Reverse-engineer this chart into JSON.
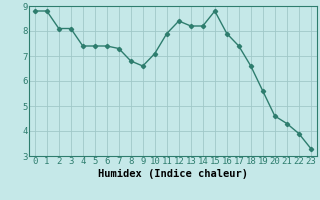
{
  "x": [
    0,
    1,
    2,
    3,
    4,
    5,
    6,
    7,
    8,
    9,
    10,
    11,
    12,
    13,
    14,
    15,
    16,
    17,
    18,
    19,
    20,
    21,
    22,
    23
  ],
  "y": [
    8.8,
    8.8,
    8.1,
    8.1,
    7.4,
    7.4,
    7.4,
    7.3,
    6.8,
    6.6,
    7.1,
    7.9,
    8.4,
    8.2,
    8.2,
    8.8,
    7.9,
    7.4,
    6.6,
    5.6,
    4.6,
    4.3,
    3.9,
    3.3
  ],
  "line_color": "#2e7d6e",
  "marker": "D",
  "marker_size": 2.2,
  "bg_color": "#c5e8e8",
  "grid_color": "#a0c8c8",
  "xlabel": "Humidex (Indice chaleur)",
  "ylim": [
    3,
    9
  ],
  "xlim": [
    -0.5,
    23.5
  ],
  "yticks": [
    3,
    4,
    5,
    6,
    7,
    8,
    9
  ],
  "xticks": [
    0,
    1,
    2,
    3,
    4,
    5,
    6,
    7,
    8,
    9,
    10,
    11,
    12,
    13,
    14,
    15,
    16,
    17,
    18,
    19,
    20,
    21,
    22,
    23
  ],
  "xlabel_fontsize": 7.5,
  "tick_fontsize": 6.5,
  "line_width": 1.0,
  "spine_color": "#2e7d6e"
}
